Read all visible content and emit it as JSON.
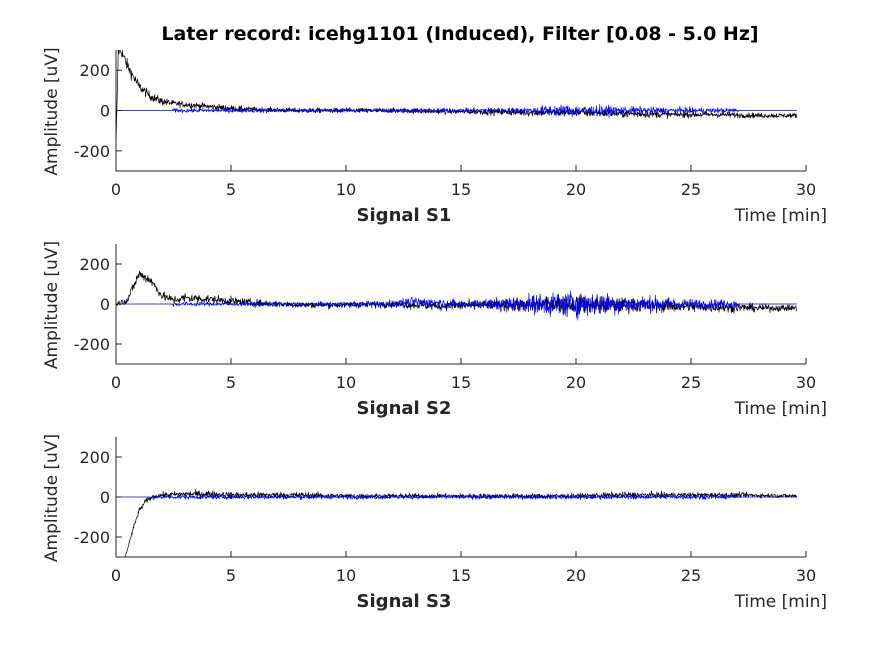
{
  "figure": {
    "title": "Later record: icehg1101 (Induced), Filter [0.08 - 5.0 Hz]"
  },
  "chart_data": [
    {
      "type": "line",
      "title": "Signal S1",
      "xlabel": "Time [min]",
      "ylabel": "Amplitude [uV]",
      "xlim": [
        0,
        30
      ],
      "ylim": [
        -300,
        300
      ],
      "xticks": [
        "0",
        "5",
        "10",
        "15",
        "20",
        "25",
        "30"
      ],
      "yticks": [
        "-200",
        "0",
        "200"
      ],
      "grid": false,
      "series": [
        {
          "color": "#000000",
          "x": [
            0,
            0.1,
            0.25,
            0.5,
            1,
            1.5,
            2,
            2.5,
            3,
            4,
            5,
            6,
            8,
            10,
            12,
            14,
            16,
            18,
            20,
            22,
            24,
            26,
            28,
            29.6
          ],
          "y": [
            -180,
            300,
            290,
            220,
            120,
            70,
            45,
            35,
            30,
            20,
            10,
            5,
            0,
            0,
            0,
            -5,
            -5,
            -10,
            -10,
            -15,
            -20,
            -20,
            -25,
            -25
          ],
          "noise": [
            0,
            30,
            30,
            30,
            25,
            20,
            20,
            15,
            15,
            15,
            15,
            12,
            12,
            12,
            12,
            12,
            15,
            18,
            20,
            20,
            15,
            15,
            12,
            12
          ]
        },
        {
          "color": "#0000ff",
          "x": [
            0,
            2.4,
            2.5,
            5,
            10,
            15,
            18,
            19,
            20,
            21,
            22,
            24,
            27,
            27.1,
            29.6
          ],
          "y": [
            0,
            0,
            0,
            0,
            0,
            0,
            0,
            0,
            0,
            0,
            0,
            0,
            0,
            0,
            0
          ],
          "noise": [
            0,
            0,
            10,
            10,
            10,
            12,
            15,
            30,
            25,
            25,
            20,
            15,
            12,
            0,
            0
          ]
        }
      ]
    },
    {
      "type": "line",
      "title": "Signal S2",
      "xlabel": "Time [min]",
      "ylabel": "Amplitude [uV]",
      "xlim": [
        0,
        30
      ],
      "ylim": [
        -300,
        300
      ],
      "xticks": [
        "0",
        "5",
        "10",
        "15",
        "20",
        "25",
        "30"
      ],
      "yticks": [
        "-200",
        "0",
        "200"
      ],
      "grid": false,
      "series": [
        {
          "color": "#000000",
          "x": [
            0,
            0.5,
            1,
            1.5,
            2,
            2.5,
            3,
            4,
            5,
            6,
            8,
            10,
            12,
            14,
            16,
            18,
            19,
            20,
            21,
            22,
            24,
            26,
            28,
            29.6
          ],
          "y": [
            0,
            20,
            150,
            120,
            40,
            20,
            30,
            25,
            15,
            5,
            -5,
            -5,
            0,
            -10,
            -5,
            -5,
            0,
            0,
            -5,
            -5,
            -10,
            -15,
            -20,
            -20
          ],
          "noise": [
            10,
            20,
            25,
            25,
            20,
            20,
            25,
            20,
            20,
            18,
            15,
            15,
            18,
            22,
            25,
            30,
            40,
            45,
            45,
            35,
            30,
            25,
            18,
            15
          ]
        },
        {
          "color": "#0000ff",
          "x": [
            0,
            2.4,
            2.5,
            5,
            10,
            12,
            13,
            15,
            16,
            17,
            18,
            19,
            20,
            21,
            22,
            23,
            25,
            27,
            27.1,
            29.6
          ],
          "y": [
            0,
            0,
            0,
            0,
            0,
            0,
            10,
            0,
            0,
            0,
            0,
            0,
            0,
            0,
            0,
            0,
            0,
            0,
            0,
            0
          ],
          "noise": [
            0,
            0,
            10,
            10,
            10,
            15,
            25,
            18,
            25,
            35,
            45,
            60,
            65,
            55,
            45,
            40,
            25,
            20,
            0,
            0
          ]
        }
      ]
    },
    {
      "type": "line",
      "title": "Signal S3",
      "xlabel": "Time [min]",
      "ylabel": "Amplitude [uV]",
      "xlim": [
        0,
        30
      ],
      "ylim": [
        -300,
        300
      ],
      "xticks": [
        "0",
        "5",
        "10",
        "15",
        "20",
        "25",
        "30"
      ],
      "yticks": [
        "-200",
        "0",
        "200"
      ],
      "grid": false,
      "series": [
        {
          "color": "#000000",
          "x": [
            0.4,
            0.6,
            0.8,
            1,
            1.3,
            1.6,
            2,
            3,
            4,
            5,
            8,
            10,
            15,
            20,
            22,
            25,
            27,
            29.6
          ],
          "y": [
            -300,
            -220,
            -140,
            -70,
            -20,
            0,
            10,
            15,
            15,
            10,
            10,
            5,
            5,
            5,
            10,
            10,
            10,
            5
          ],
          "noise": [
            5,
            10,
            12,
            12,
            12,
            12,
            12,
            15,
            18,
            15,
            15,
            12,
            12,
            12,
            15,
            12,
            12,
            10
          ]
        },
        {
          "color": "#0000ff",
          "x": [
            0,
            1.5,
            1.6,
            5,
            10,
            15,
            20,
            25,
            27,
            27.1,
            29.6
          ],
          "y": [
            0,
            0,
            0,
            0,
            0,
            0,
            0,
            0,
            0,
            0,
            0
          ],
          "noise": [
            0,
            0,
            10,
            10,
            10,
            10,
            10,
            10,
            10,
            0,
            0
          ]
        }
      ]
    }
  ]
}
